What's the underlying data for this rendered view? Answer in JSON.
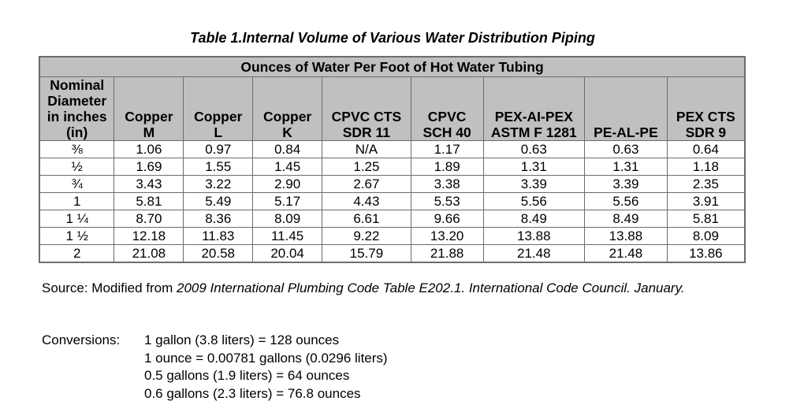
{
  "title": "Table 1.Internal Volume of Various Water Distribution Piping",
  "table": {
    "span_header": "Ounces of Water Per Foot of Hot Water Tubing",
    "columns": [
      [
        "Nominal",
        "Diameter",
        "in inches",
        "(in)"
      ],
      [
        "Copper",
        "M"
      ],
      [
        "Copper",
        "L"
      ],
      [
        "Copper",
        "K"
      ],
      [
        "CPVC CTS",
        "SDR 11"
      ],
      [
        "CPVC",
        "SCH 40"
      ],
      [
        "PEX-AI-PEX",
        "ASTM F 1281"
      ],
      [
        "PE-AL-PE"
      ],
      [
        "PEX CTS",
        "SDR 9"
      ]
    ],
    "rows": [
      [
        "⅜",
        "1.06",
        "0.97",
        "0.84",
        "N/A",
        "1.17",
        "0.63",
        "0.63",
        "0.64"
      ],
      [
        "½",
        "1.69",
        "1.55",
        "1.45",
        "1.25",
        "1.89",
        "1.31",
        "1.31",
        "1.18"
      ],
      [
        "¾",
        "3.43",
        "3.22",
        "2.90",
        "2.67",
        "3.38",
        "3.39",
        "3.39",
        "2.35"
      ],
      [
        "1",
        "5.81",
        "5.49",
        "5.17",
        "4.43",
        "5.53",
        "5.56",
        "5.56",
        "3.91"
      ],
      [
        "1 ¼",
        "8.70",
        "8.36",
        "8.09",
        "6.61",
        "9.66",
        "8.49",
        "8.49",
        "5.81"
      ],
      [
        "1 ½",
        "12.18",
        "11.83",
        "11.45",
        "9.22",
        "13.20",
        "13.88",
        "13.88",
        "8.09"
      ],
      [
        "2",
        "21.08",
        "20.58",
        "20.04",
        "15.79",
        "21.88",
        "21.48",
        "21.48",
        "13.86"
      ]
    ]
  },
  "source": {
    "prefix": "Source: Modified from ",
    "italic": "2009 International Plumbing Code Table E202.1. International Code Council. January."
  },
  "conversions": {
    "label": "Conversions:",
    "lines": [
      "1 gallon (3.8 liters) = 128 ounces",
      "1 ounce = 0.00781 gallons (0.0296 liters)",
      "0.5 gallons (1.9 liters) = 64 ounces",
      "0.6 gallons (2.3 liters) = 76.8 ounces"
    ]
  },
  "colors": {
    "header_bg": "#c0c0c0",
    "border": "#6c6c6c"
  }
}
